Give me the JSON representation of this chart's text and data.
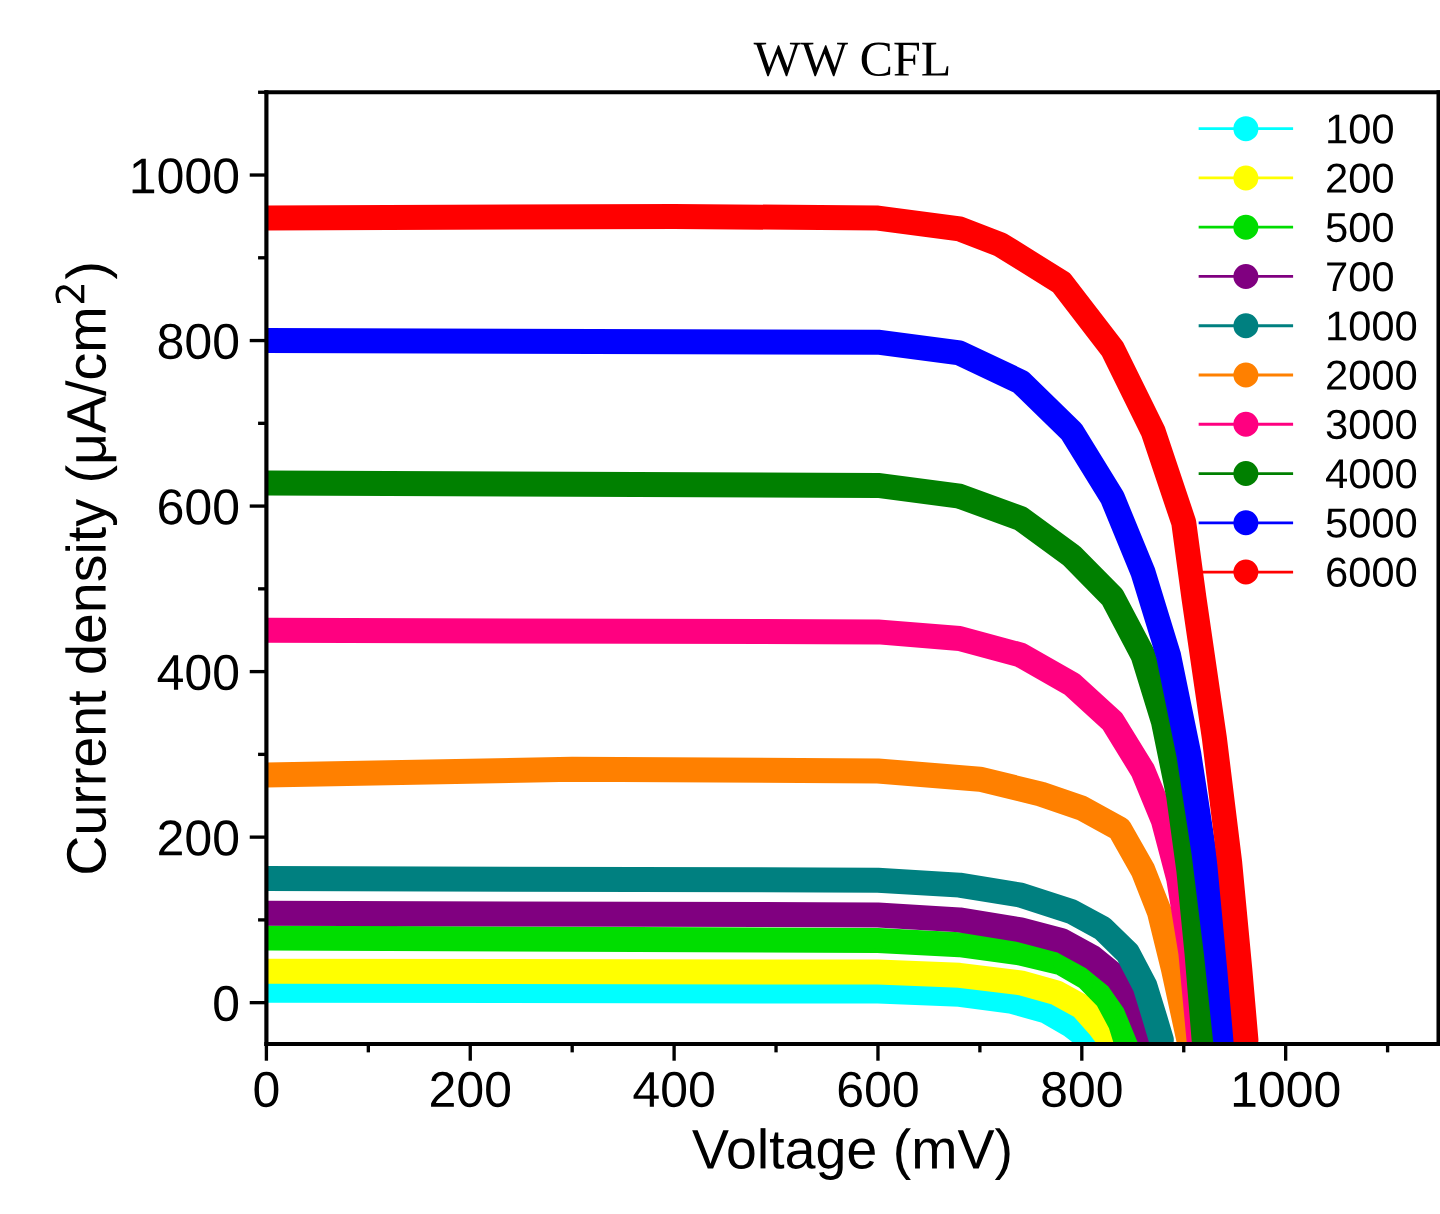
{
  "chart_data": {
    "type": "line",
    "title": "WW CFL",
    "xlabel": "Voltage (mV)",
    "ylabel": "Current density (μA/cm$^{2}$)",
    "xlim": [
      0,
      1150
    ],
    "ylim": [
      -50,
      1100
    ],
    "xticks": [
      0,
      200,
      400,
      600,
      800,
      1000
    ],
    "yticks": [
      0,
      200,
      400,
      600,
      800,
      1000
    ],
    "grid": false,
    "legend": "top right",
    "marker": "circle",
    "line_style": "solid",
    "series": [
      {
        "name": "100",
        "color": "#00ffff",
        "x": [
          0,
          600,
          680,
          730,
          765,
          790,
          808
        ],
        "values": [
          15,
          14,
          10,
          2,
          -10,
          -28,
          -45
        ]
      },
      {
        "name": "200",
        "color": "#ffff00",
        "x": [
          0,
          600,
          680,
          740,
          775,
          800,
          818,
          827
        ],
        "values": [
          38,
          37,
          33,
          24,
          12,
          -5,
          -30,
          -45
        ]
      },
      {
        "name": "500",
        "color": "#00dd00",
        "x": [
          0,
          600,
          680,
          740,
          780,
          805,
          825,
          838,
          843
        ],
        "values": [
          78,
          75,
          70,
          60,
          48,
          30,
          5,
          -25,
          -45
        ]
      },
      {
        "name": "700",
        "color": "#800080",
        "x": [
          0,
          600,
          680,
          740,
          780,
          810,
          835,
          852,
          862,
          867
        ],
        "values": [
          108,
          106,
          100,
          88,
          75,
          55,
          30,
          0,
          -30,
          -45
        ]
      },
      {
        "name": "1000",
        "color": "#008080",
        "x": [
          0,
          600,
          680,
          740,
          790,
          820,
          845,
          862,
          872,
          878
        ],
        "values": [
          150,
          148,
          142,
          130,
          110,
          90,
          60,
          20,
          -20,
          -45
        ]
      },
      {
        "name": "2000",
        "color": "#ff8000",
        "x": [
          0,
          300,
          600,
          700,
          760,
          800,
          837,
          860,
          876,
          890,
          905
        ],
        "values": [
          275,
          282,
          280,
          270,
          252,
          235,
          210,
          160,
          110,
          40,
          -45
        ]
      },
      {
        "name": "3000",
        "color": "#ff0080",
        "x": [
          0,
          600,
          680,
          740,
          790,
          830,
          860,
          880,
          895,
          907,
          915
        ],
        "values": [
          450,
          448,
          440,
          420,
          385,
          340,
          280,
          220,
          150,
          60,
          -45
        ]
      },
      {
        "name": "4000",
        "color": "#008000",
        "x": [
          0,
          600,
          680,
          740,
          790,
          830,
          860,
          880,
          895,
          905,
          913,
          920
        ],
        "values": [
          628,
          625,
          612,
          585,
          540,
          490,
          420,
          340,
          250,
          160,
          60,
          -45
        ]
      },
      {
        "name": "5000",
        "color": "#0000ff",
        "x": [
          0,
          600,
          680,
          740,
          790,
          830,
          860,
          885,
          905,
          920,
          932,
          941
        ],
        "values": [
          800,
          798,
          785,
          750,
          690,
          610,
          520,
          420,
          300,
          180,
          60,
          -45
        ]
      },
      {
        "name": "6000",
        "color": "#ff0000",
        "x": [
          0,
          400,
          600,
          680,
          720,
          780,
          830,
          870,
          900,
          910,
          930,
          945,
          955,
          961
        ],
        "values": [
          948,
          950,
          948,
          935,
          916,
          870,
          790,
          690,
          580,
          489,
          320,
          170,
          40,
          -45
        ]
      }
    ]
  }
}
